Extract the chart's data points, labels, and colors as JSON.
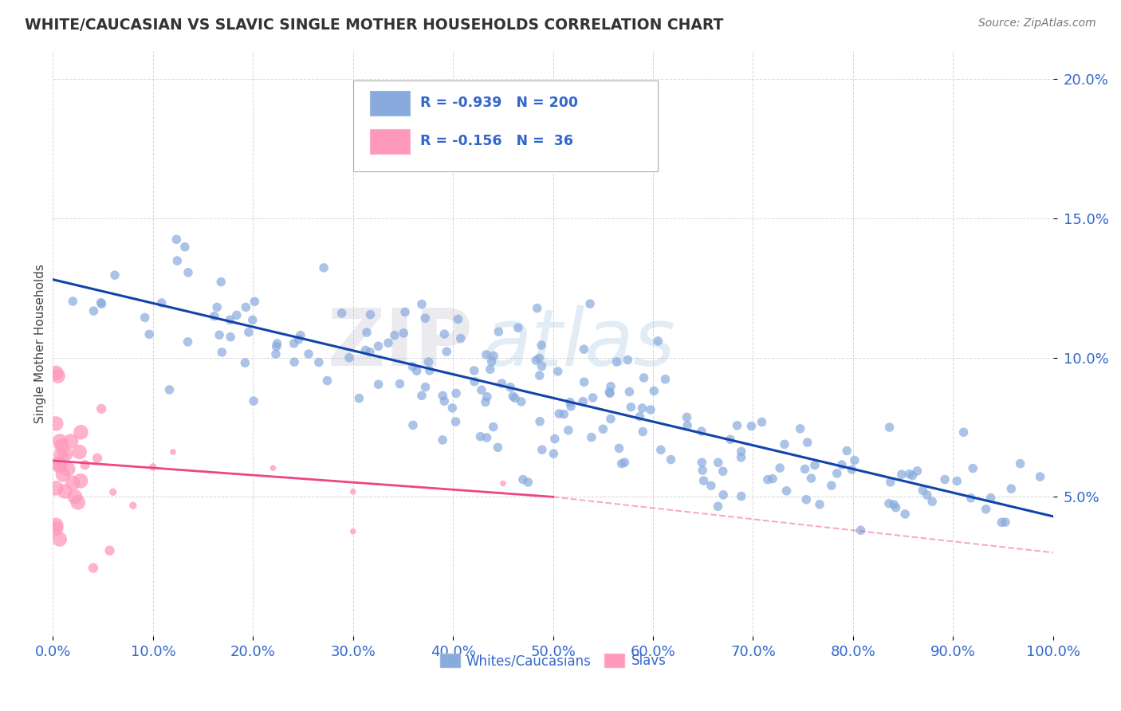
{
  "title": "WHITE/CAUCASIAN VS SLAVIC SINGLE MOTHER HOUSEHOLDS CORRELATION CHART",
  "source": "Source: ZipAtlas.com",
  "ylabel": "Single Mother Households",
  "watermark_zip": "ZIP",
  "watermark_atlas": "atlas",
  "legend_blue_R": "-0.939",
  "legend_blue_N": "200",
  "legend_pink_R": "-0.156",
  "legend_pink_N": "36",
  "legend_blue_label": "Whites/Caucasians",
  "legend_pink_label": "Slavs",
  "blue_color": "#88AADD",
  "pink_color": "#FF99BB",
  "blue_line_color": "#1144AA",
  "pink_line_color": "#EE4488",
  "background_color": "#FFFFFF",
  "grid_color": "#CCCCCC",
  "title_color": "#333333",
  "axis_label_color": "#3366CC",
  "xlim": [
    0.0,
    1.0
  ],
  "ylim": [
    0.0,
    0.21
  ],
  "yticks": [
    0.05,
    0.1,
    0.15,
    0.2
  ],
  "xticks": [
    0.0,
    0.1,
    0.2,
    0.3,
    0.4,
    0.5,
    0.6,
    0.7,
    0.8,
    0.9,
    1.0
  ],
  "blue_trend_start_y": 0.128,
  "blue_trend_end_y": 0.043,
  "pink_trend_start_y": 0.063,
  "pink_trend_solid_end_x": 0.5,
  "pink_trend_solid_end_y": 0.05,
  "pink_trend_dash_end_x": 1.0,
  "pink_trend_dash_end_y": 0.03
}
